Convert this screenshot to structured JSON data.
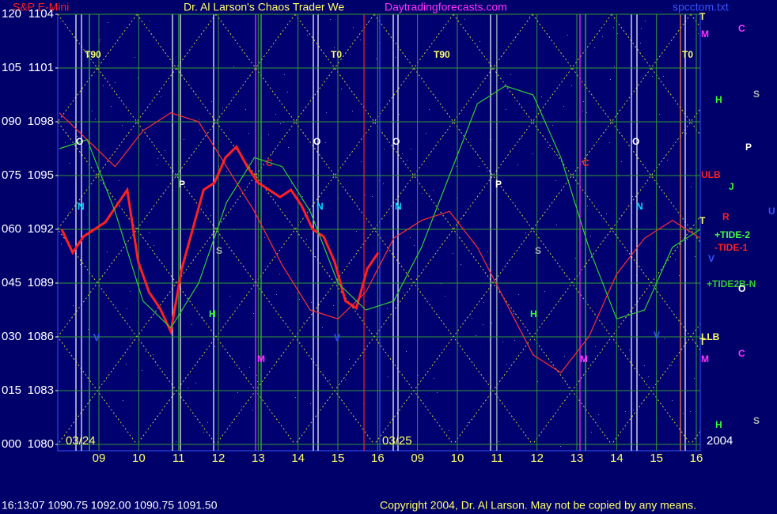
{
  "chart_data": {
    "type": "line",
    "title": "S&P E-Mini",
    "subtitle": "Dr. Al Larson's Chaos Trader We",
    "site": "Daytradingforecasts.com",
    "file": "spcctom.txt",
    "ylim": [
      1080,
      1104
    ],
    "yticks": [
      1104,
      1101,
      1098,
      1095,
      1092,
      1089,
      1086,
      1083,
      1080
    ],
    "y2lim": [
      0,
      120
    ],
    "y2ticks": [
      {
        "value": 120,
        "label": "120"
      },
      {
        "value": 105,
        "label": "105"
      },
      {
        "value": 90,
        "label": "090"
      },
      {
        "value": 75,
        "label": "075"
      },
      {
        "value": 60,
        "label": "060"
      },
      {
        "value": 45,
        "label": "045"
      },
      {
        "value": 30,
        "label": "030"
      },
      {
        "value": 15,
        "label": "015"
      },
      {
        "value": 0,
        "label": "000"
      }
    ],
    "x_labels": [
      "09",
      "10",
      "11",
      "12",
      "13",
      "14",
      "15",
      "16",
      "09",
      "10",
      "11",
      "12",
      "13",
      "14",
      "15",
      "16"
    ],
    "date_labels": [
      "03/24",
      "03/25",
      "2004"
    ],
    "grid": true,
    "series": [
      {
        "name": "price",
        "color": "#ff2020",
        "values": [
          1092.0,
          1090.7,
          1091.6,
          1092.0,
          1092.4,
          1093.3,
          1094.2,
          1090.2,
          1088.5,
          1087.6,
          1086.3,
          1089.8,
          1092.0,
          1094.2,
          1094.6,
          1096.0,
          1096.6,
          1095.5,
          1094.6,
          1094.2,
          1093.8,
          1094.2,
          1093.3,
          1092.0,
          1091.6,
          1090.2,
          1088.0,
          1087.6,
          1089.8,
          1090.7
        ]
      },
      {
        "name": "cycle",
        "color": "#ff3030",
        "values": [
          1098.5,
          1097.0,
          1095.5,
          1097.5,
          1098.5,
          1098.0,
          1095.5,
          1093.0,
          1090.0,
          1087.5,
          1087.0,
          1088.5,
          1091.5,
          1092.5,
          1093.0,
          1091.0,
          1088.0,
          1085.0,
          1084.0,
          1086.0,
          1089.5,
          1091.5,
          1092.5,
          1091.5
        ]
      },
      {
        "name": "flow",
        "color": "#33cc33",
        "values": [
          1096.5,
          1097.0,
          1093.0,
          1088.0,
          1086.5,
          1089.0,
          1093.5,
          1096.0,
          1095.5,
          1093.0,
          1089.0,
          1087.5,
          1088.0,
          1091.0,
          1095.0,
          1099.0,
          1100.0,
          1099.5,
          1096.0,
          1091.0,
          1087.0,
          1087.5,
          1091.0,
          1092.0
        ]
      }
    ],
    "annotations": [
      {
        "text": "T90",
        "color": "#ffff66"
      },
      {
        "text": "T0",
        "color": "#ffff66"
      },
      {
        "text": "T90",
        "color": "#ffff66"
      },
      {
        "text": "T0",
        "color": "#ffff66"
      },
      {
        "text": "O",
        "color": "#ffffff"
      },
      {
        "text": "O",
        "color": "#ffffff"
      },
      {
        "text": "O",
        "color": "#ffffff"
      },
      {
        "text": "O",
        "color": "#ffffff"
      },
      {
        "text": "N",
        "color": "#00e0ff"
      },
      {
        "text": "N",
        "color": "#00e0ff"
      },
      {
        "text": "N",
        "color": "#00e0ff"
      },
      {
        "text": "N",
        "color": "#00e0ff"
      },
      {
        "text": "P",
        "color": "#ffffff"
      },
      {
        "text": "P",
        "color": "#ffffff"
      },
      {
        "text": "C",
        "color": "#ff2020"
      },
      {
        "text": "C",
        "color": "#ff2020"
      },
      {
        "text": "S",
        "color": "#b0b0b0"
      },
      {
        "text": "S",
        "color": "#b0b0b0"
      },
      {
        "text": "H",
        "color": "#33ff33"
      },
      {
        "text": "H",
        "color": "#33ff33"
      },
      {
        "text": "M",
        "color": "#ff33ff"
      },
      {
        "text": "M",
        "color": "#ff33ff"
      },
      {
        "text": "V",
        "color": "#3355ff"
      },
      {
        "text": "V",
        "color": "#3355ff"
      },
      {
        "text": "V",
        "color": "#3355ff"
      },
      {
        "text": "T",
        "color": "#ffff66"
      },
      {
        "text": "M",
        "color": "#ff33ff"
      },
      {
        "text": "C",
        "color": "#ff33ff"
      },
      {
        "text": "H",
        "color": "#33ff33"
      },
      {
        "text": "S",
        "color": "#b0b0b0"
      },
      {
        "text": "P",
        "color": "#ffffff"
      },
      {
        "text": "ULB",
        "color": "#ff2020"
      },
      {
        "text": "J",
        "color": "#33ff33"
      },
      {
        "text": "R",
        "color": "#ff2020"
      },
      {
        "text": "U",
        "color": "#3355ff"
      },
      {
        "text": "T",
        "color": "#ffff66"
      },
      {
        "text": "+TIDE-2",
        "color": "#44ff44"
      },
      {
        "text": "-TIDE-1",
        "color": "#ff2020"
      },
      {
        "text": "V",
        "color": "#3355ff"
      },
      {
        "text": "+TIDE2B-N",
        "color": "#33cc33"
      },
      {
        "text": "O",
        "color": "#ffffff"
      },
      {
        "text": "LLB",
        "color": "#ffff66"
      },
      {
        "text": "T",
        "color": "#ffff66"
      },
      {
        "text": "C",
        "color": "#ff33ff"
      },
      {
        "text": "M",
        "color": "#ff33ff"
      },
      {
        "text": "H",
        "color": "#33ff33"
      },
      {
        "text": "S",
        "color": "#b0b0b0"
      }
    ],
    "footer_quote": "16:13:07 1090.75 1092.00 1090.75 1091.50",
    "copyright": "Copyright 2004, Dr. Al Larson. May not be copied by any means."
  }
}
